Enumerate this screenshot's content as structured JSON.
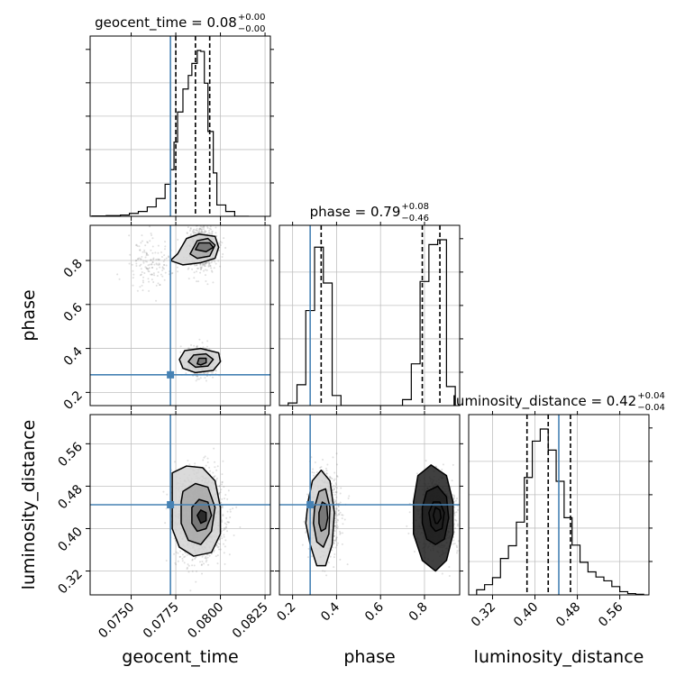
{
  "chart_data": {
    "type": "corner",
    "parameters": [
      "geocent_time",
      "phase",
      "luminosity_distance"
    ],
    "truths": {
      "geocent_time": 0.0772,
      "phase": 0.28,
      "luminosity_distance": 0.445
    },
    "colors": {
      "truth": "#4682b4",
      "hist": "#000000",
      "grid": "#c0c0c0",
      "scatter": "#7f7f7f"
    },
    "titles": {
      "geocent_time": {
        "name": "geocent_time",
        "value": "0.08",
        "plus": "+0.00",
        "minus": "−0.00"
      },
      "phase": {
        "name": "phase",
        "value": "0.79",
        "plus": "+0.08",
        "minus": "−0.46"
      },
      "luminosity_distance": {
        "name": "luminosity_distance",
        "value": "0.42",
        "plus": "+0.04",
        "minus": "−0.04"
      }
    },
    "axis_labels": {
      "x": [
        "geocent_time",
        "phase",
        "luminosity_distance"
      ],
      "y": [
        "phase",
        "luminosity_distance"
      ]
    },
    "ranges": {
      "geocent_time": [
        0.0727,
        0.0828
      ],
      "phase": [
        0.14,
        0.96
      ],
      "luminosity_distance": [
        0.275,
        0.615
      ]
    },
    "ticks": {
      "geocent_time": {
        "values": [
          0.075,
          0.0775,
          0.08,
          0.0825
        ],
        "labels": [
          "0.0750",
          "0.0775",
          "0.0800",
          "0.0825"
        ]
      },
      "phase": {
        "values": [
          0.2,
          0.4,
          0.6,
          0.8
        ],
        "labels": [
          "0.2",
          "0.4",
          "0.6",
          "0.8"
        ]
      },
      "luminosity_distance": {
        "values": [
          0.32,
          0.4,
          0.48,
          0.56
        ],
        "labels": [
          "0.32",
          "0.40",
          "0.48",
          "0.56"
        ]
      }
    },
    "quantiles": {
      "geocent_time": [
        0.0775,
        0.0786,
        0.0794
      ],
      "phase": [
        0.33,
        0.79,
        0.87
      ],
      "luminosity_distance": [
        0.385,
        0.425,
        0.467
      ]
    },
    "histograms": {
      "geocent_time": {
        "bins": [
          0.0728,
          0.0736,
          0.0744,
          0.0749,
          0.0754,
          0.0759,
          0.0764,
          0.0769,
          0.0772,
          0.0774,
          0.0776,
          0.0779,
          0.0782,
          0.0784,
          0.0787,
          0.0789,
          0.0791,
          0.0793,
          0.0796,
          0.0798,
          0.0803,
          0.0808,
          0.0816
        ],
        "counts": [
          1,
          2,
          4,
          9,
          15,
          29,
          55,
          99,
          144,
          229,
          322,
          393,
          435,
          472,
          512,
          509,
          411,
          262,
          134,
          35,
          15,
          0
        ]
      },
      "phase": {
        "bins": [
          0.14,
          0.18,
          0.22,
          0.26,
          0.3,
          0.34,
          0.38,
          0.42,
          0.46,
          0.5,
          0.54,
          0.58,
          0.62,
          0.66,
          0.7,
          0.74,
          0.78,
          0.82,
          0.86,
          0.9,
          0.94
        ],
        "counts": [
          0,
          7,
          56,
          255,
          425,
          329,
          27,
          0,
          0,
          0,
          0,
          0,
          0,
          0,
          16,
          112,
          333,
          432,
          445,
          51
        ]
      },
      "luminosity_distance": {
        "bins": [
          0.29,
          0.305,
          0.32,
          0.335,
          0.35,
          0.365,
          0.38,
          0.395,
          0.41,
          0.425,
          0.44,
          0.455,
          0.47,
          0.485,
          0.5,
          0.515,
          0.53,
          0.545,
          0.56,
          0.575,
          0.59,
          0.605
        ],
        "counts": [
          8,
          16,
          27,
          57,
          77,
          114,
          184,
          241,
          260,
          227,
          178,
          121,
          78,
          51,
          36,
          28,
          22,
          13,
          5,
          2,
          1
        ]
      }
    },
    "blobs_2d": {
      "geocent_time__phase": [
        {
          "cx": 0.079,
          "cy": 0.86,
          "sx": 0.0004,
          "sy": 0.05,
          "n": 750
        },
        {
          "cx": 0.0789,
          "cy": 0.34,
          "sx": 0.0004,
          "sy": 0.03,
          "n": 650
        },
        {
          "cx": 0.076,
          "cy": 0.79,
          "sx": 0.0006,
          "sy": 0.055,
          "n": 150
        }
      ],
      "geocent_time__luminosity_distance": [
        {
          "cx": 0.0788,
          "cy": 0.425,
          "sx": 0.00065,
          "sy": 0.038,
          "n": 1700
        }
      ],
      "phase__luminosity_distance": [
        {
          "cx": 0.345,
          "cy": 0.425,
          "sx": 0.035,
          "sy": 0.038,
          "n": 800
        },
        {
          "cx": 0.855,
          "cy": 0.425,
          "sx": 0.045,
          "sy": 0.038,
          "n": 800
        }
      ]
    },
    "contours": {
      "geocent_time__phase": [
        [
          [
            0.0772,
            0.8
          ],
          [
            0.0776,
            0.83
          ],
          [
            0.0781,
            0.9
          ],
          [
            0.0788,
            0.92
          ],
          [
            0.0797,
            0.91
          ],
          [
            0.0799,
            0.86
          ],
          [
            0.0797,
            0.81
          ],
          [
            0.0789,
            0.79
          ],
          [
            0.0779,
            0.78
          ]
        ],
        [
          [
            0.0783,
            0.83
          ],
          [
            0.0787,
            0.89
          ],
          [
            0.0793,
            0.9
          ],
          [
            0.0797,
            0.87
          ],
          [
            0.0794,
            0.82
          ],
          [
            0.0787,
            0.81
          ]
        ],
        [
          [
            0.0786,
            0.85
          ],
          [
            0.0788,
            0.88
          ],
          [
            0.0794,
            0.88
          ],
          [
            0.0796,
            0.86
          ],
          [
            0.0792,
            0.84
          ]
        ],
        [
          [
            0.0777,
            0.35
          ],
          [
            0.078,
            0.39
          ],
          [
            0.0789,
            0.4
          ],
          [
            0.0799,
            0.38
          ],
          [
            0.08,
            0.34
          ],
          [
            0.0796,
            0.3
          ],
          [
            0.0786,
            0.29
          ],
          [
            0.0779,
            0.31
          ]
        ],
        [
          [
            0.0782,
            0.34
          ],
          [
            0.0785,
            0.37
          ],
          [
            0.0792,
            0.375
          ],
          [
            0.0796,
            0.35
          ],
          [
            0.0793,
            0.32
          ],
          [
            0.0786,
            0.315
          ]
        ],
        [
          [
            0.0787,
            0.33
          ],
          [
            0.0788,
            0.355
          ],
          [
            0.0792,
            0.355
          ],
          [
            0.0792,
            0.335
          ],
          [
            0.0789,
            0.325
          ]
        ]
      ],
      "geocent_time__luminosity_distance": [
        [
          [
            0.0773,
            0.505
          ],
          [
            0.0781,
            0.518
          ],
          [
            0.079,
            0.515
          ],
          [
            0.0797,
            0.49
          ],
          [
            0.08,
            0.44
          ],
          [
            0.08,
            0.39
          ],
          [
            0.0795,
            0.355
          ],
          [
            0.0785,
            0.348
          ],
          [
            0.0777,
            0.365
          ],
          [
            0.0773,
            0.4
          ],
          [
            0.0773,
            0.45
          ]
        ],
        [
          [
            0.0779,
            0.47
          ],
          [
            0.0786,
            0.485
          ],
          [
            0.0793,
            0.478
          ],
          [
            0.0797,
            0.44
          ],
          [
            0.0795,
            0.395
          ],
          [
            0.0789,
            0.37
          ],
          [
            0.0782,
            0.378
          ],
          [
            0.0778,
            0.41
          ],
          [
            0.0778,
            0.45
          ]
        ],
        [
          [
            0.0784,
            0.44
          ],
          [
            0.0788,
            0.455
          ],
          [
            0.0793,
            0.45
          ],
          [
            0.0795,
            0.425
          ],
          [
            0.0792,
            0.4
          ],
          [
            0.0787,
            0.395
          ],
          [
            0.0784,
            0.41
          ]
        ],
        [
          [
            0.0787,
            0.425
          ],
          [
            0.0789,
            0.435
          ],
          [
            0.0792,
            0.43
          ],
          [
            0.0792,
            0.415
          ],
          [
            0.0789,
            0.41
          ]
        ]
      ],
      "phase__luminosity_distance": [
        [
          [
            0.27,
            0.45
          ],
          [
            0.29,
            0.49
          ],
          [
            0.33,
            0.51
          ],
          [
            0.37,
            0.49
          ],
          [
            0.39,
            0.43
          ],
          [
            0.38,
            0.37
          ],
          [
            0.35,
            0.33
          ],
          [
            0.31,
            0.33
          ],
          [
            0.28,
            0.37
          ],
          [
            0.26,
            0.41
          ]
        ],
        [
          [
            0.3,
            0.44
          ],
          [
            0.32,
            0.47
          ],
          [
            0.35,
            0.475
          ],
          [
            0.37,
            0.44
          ],
          [
            0.365,
            0.39
          ],
          [
            0.34,
            0.365
          ],
          [
            0.31,
            0.375
          ],
          [
            0.295,
            0.41
          ]
        ],
        [
          [
            0.32,
            0.43
          ],
          [
            0.335,
            0.45
          ],
          [
            0.355,
            0.445
          ],
          [
            0.36,
            0.42
          ],
          [
            0.35,
            0.4
          ],
          [
            0.33,
            0.395
          ],
          [
            0.32,
            0.41
          ]
        ],
        [
          [
            0.75,
            0.45
          ],
          [
            0.77,
            0.5
          ],
          [
            0.83,
            0.52
          ],
          [
            0.9,
            0.5
          ],
          [
            0.93,
            0.45
          ],
          [
            0.93,
            0.39
          ],
          [
            0.9,
            0.34
          ],
          [
            0.85,
            0.32
          ],
          [
            0.79,
            0.34
          ],
          [
            0.75,
            0.39
          ]
        ],
        [
          [
            0.79,
            0.44
          ],
          [
            0.81,
            0.47
          ],
          [
            0.86,
            0.48
          ],
          [
            0.9,
            0.46
          ],
          [
            0.91,
            0.42
          ],
          [
            0.89,
            0.38
          ],
          [
            0.85,
            0.37
          ],
          [
            0.81,
            0.38
          ],
          [
            0.79,
            0.41
          ]
        ],
        [
          [
            0.82,
            0.43
          ],
          [
            0.84,
            0.45
          ],
          [
            0.87,
            0.45
          ],
          [
            0.89,
            0.43
          ],
          [
            0.88,
            0.4
          ],
          [
            0.85,
            0.395
          ],
          [
            0.83,
            0.405
          ]
        ],
        [
          [
            0.84,
            0.425
          ],
          [
            0.85,
            0.44
          ],
          [
            0.87,
            0.435
          ],
          [
            0.875,
            0.42
          ],
          [
            0.86,
            0.41
          ],
          [
            0.85,
            0.41
          ]
        ]
      ]
    },
    "grid": true
  }
}
